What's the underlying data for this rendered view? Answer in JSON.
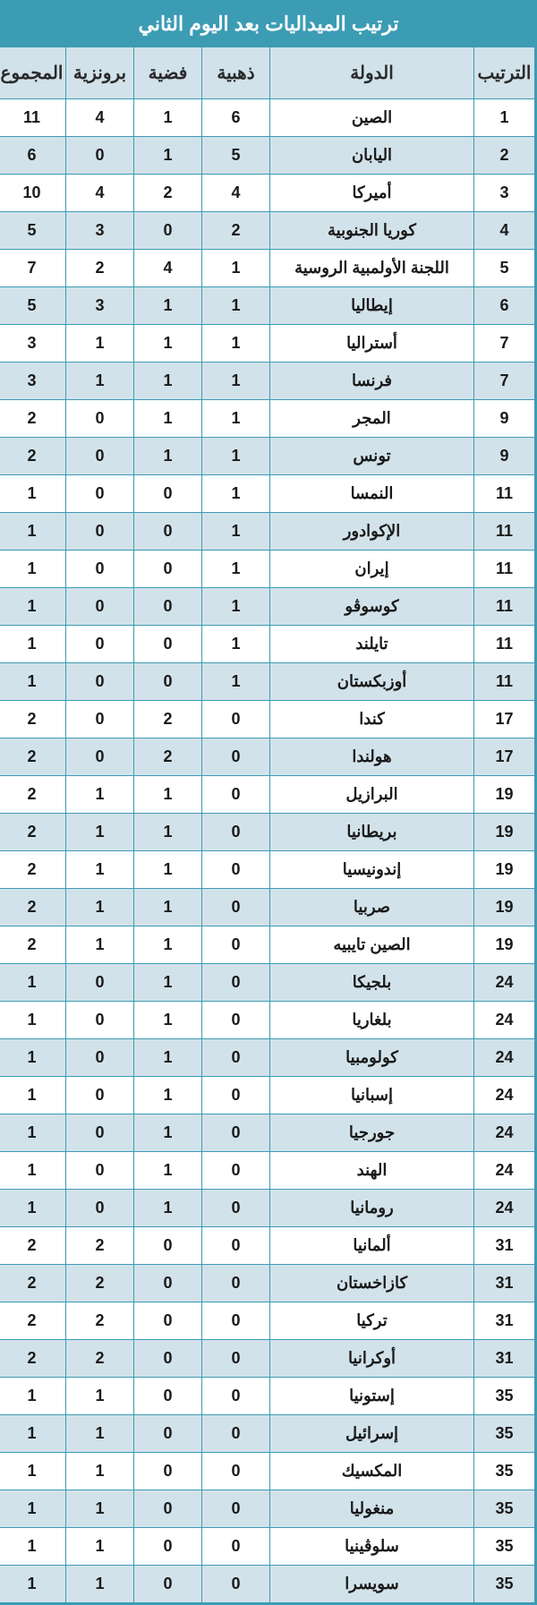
{
  "title": "ترتيب الميداليات بعد اليوم الثاني",
  "columns": {
    "rank": "الترتيب",
    "country": "الدولة",
    "gold": "ذهبية",
    "silver": "فضية",
    "bronze": "برونزية",
    "total": "المجموع"
  },
  "colors": {
    "header_bg": "#3b9cb4",
    "header_text": "#ffffff",
    "th_bg": "#d2e2ea",
    "border": "#3b9cb4",
    "row_even_bg": "#ffffff",
    "row_odd_bg": "#d2e2ea",
    "text": "#1a1a1a"
  },
  "font_sizes": {
    "title": 22,
    "th": 20,
    "td": 18
  },
  "rows": [
    {
      "rank": 1,
      "country": "الصين",
      "gold": 6,
      "silver": 1,
      "bronze": 4,
      "total": 11
    },
    {
      "rank": 2,
      "country": "اليابان",
      "gold": 5,
      "silver": 1,
      "bronze": 0,
      "total": 6
    },
    {
      "rank": 3,
      "country": "أميركا",
      "gold": 4,
      "silver": 2,
      "bronze": 4,
      "total": 10
    },
    {
      "rank": 4,
      "country": "كوريا الجنوبية",
      "gold": 2,
      "silver": 0,
      "bronze": 3,
      "total": 5
    },
    {
      "rank": 5,
      "country": "اللجنة الأولمبية الروسية",
      "gold": 1,
      "silver": 4,
      "bronze": 2,
      "total": 7
    },
    {
      "rank": 6,
      "country": "إيطاليا",
      "gold": 1,
      "silver": 1,
      "bronze": 3,
      "total": 5
    },
    {
      "rank": 7,
      "country": "أستراليا",
      "gold": 1,
      "silver": 1,
      "bronze": 1,
      "total": 3
    },
    {
      "rank": 7,
      "country": "فرنسا",
      "gold": 1,
      "silver": 1,
      "bronze": 1,
      "total": 3
    },
    {
      "rank": 9,
      "country": "المجر",
      "gold": 1,
      "silver": 1,
      "bronze": 0,
      "total": 2
    },
    {
      "rank": 9,
      "country": "تونس",
      "gold": 1,
      "silver": 1,
      "bronze": 0,
      "total": 2
    },
    {
      "rank": 11,
      "country": "النمسا",
      "gold": 1,
      "silver": 0,
      "bronze": 0,
      "total": 1
    },
    {
      "rank": 11,
      "country": "الإكوادور",
      "gold": 1,
      "silver": 0,
      "bronze": 0,
      "total": 1
    },
    {
      "rank": 11,
      "country": "إيران",
      "gold": 1,
      "silver": 0,
      "bronze": 0,
      "total": 1
    },
    {
      "rank": 11,
      "country": "كوسوڤو",
      "gold": 1,
      "silver": 0,
      "bronze": 0,
      "total": 1
    },
    {
      "rank": 11,
      "country": "تايلند",
      "gold": 1,
      "silver": 0,
      "bronze": 0,
      "total": 1
    },
    {
      "rank": 11,
      "country": "أوزبكستان",
      "gold": 1,
      "silver": 0,
      "bronze": 0,
      "total": 1
    },
    {
      "rank": 17,
      "country": "كندا",
      "gold": 0,
      "silver": 2,
      "bronze": 0,
      "total": 2
    },
    {
      "rank": 17,
      "country": "هولندا",
      "gold": 0,
      "silver": 2,
      "bronze": 0,
      "total": 2
    },
    {
      "rank": 19,
      "country": "البرازيل",
      "gold": 0,
      "silver": 1,
      "bronze": 1,
      "total": 2
    },
    {
      "rank": 19,
      "country": "بريطانيا",
      "gold": 0,
      "silver": 1,
      "bronze": 1,
      "total": 2
    },
    {
      "rank": 19,
      "country": "إندونيسيا",
      "gold": 0,
      "silver": 1,
      "bronze": 1,
      "total": 2
    },
    {
      "rank": 19,
      "country": "صربيا",
      "gold": 0,
      "silver": 1,
      "bronze": 1,
      "total": 2
    },
    {
      "rank": 19,
      "country": "الصين تايبيه",
      "gold": 0,
      "silver": 1,
      "bronze": 1,
      "total": 2
    },
    {
      "rank": 24,
      "country": "بلجيكا",
      "gold": 0,
      "silver": 1,
      "bronze": 0,
      "total": 1
    },
    {
      "rank": 24,
      "country": "بلغاريا",
      "gold": 0,
      "silver": 1,
      "bronze": 0,
      "total": 1
    },
    {
      "rank": 24,
      "country": "كولومبيا",
      "gold": 0,
      "silver": 1,
      "bronze": 0,
      "total": 1
    },
    {
      "rank": 24,
      "country": "إسبانيا",
      "gold": 0,
      "silver": 1,
      "bronze": 0,
      "total": 1
    },
    {
      "rank": 24,
      "country": "جورجيا",
      "gold": 0,
      "silver": 1,
      "bronze": 0,
      "total": 1
    },
    {
      "rank": 24,
      "country": "الهند",
      "gold": 0,
      "silver": 1,
      "bronze": 0,
      "total": 1
    },
    {
      "rank": 24,
      "country": "رومانيا",
      "gold": 0,
      "silver": 1,
      "bronze": 0,
      "total": 1
    },
    {
      "rank": 31,
      "country": "ألمانيا",
      "gold": 0,
      "silver": 0,
      "bronze": 2,
      "total": 2
    },
    {
      "rank": 31,
      "country": "كازاخستان",
      "gold": 0,
      "silver": 0,
      "bronze": 2,
      "total": 2
    },
    {
      "rank": 31,
      "country": "تركيا",
      "gold": 0,
      "silver": 0,
      "bronze": 2,
      "total": 2
    },
    {
      "rank": 31,
      "country": "أوكرانيا",
      "gold": 0,
      "silver": 0,
      "bronze": 2,
      "total": 2
    },
    {
      "rank": 35,
      "country": "إستونيا",
      "gold": 0,
      "silver": 0,
      "bronze": 1,
      "total": 1
    },
    {
      "rank": 35,
      "country": "إسرائيل",
      "gold": 0,
      "silver": 0,
      "bronze": 1,
      "total": 1
    },
    {
      "rank": 35,
      "country": "المكسيك",
      "gold": 0,
      "silver": 0,
      "bronze": 1,
      "total": 1
    },
    {
      "rank": 35,
      "country": "منغوليا",
      "gold": 0,
      "silver": 0,
      "bronze": 1,
      "total": 1
    },
    {
      "rank": 35,
      "country": "سلوڤينيا",
      "gold": 0,
      "silver": 0,
      "bronze": 1,
      "total": 1
    },
    {
      "rank": 35,
      "country": "سويسرا",
      "gold": 0,
      "silver": 0,
      "bronze": 1,
      "total": 1
    }
  ]
}
